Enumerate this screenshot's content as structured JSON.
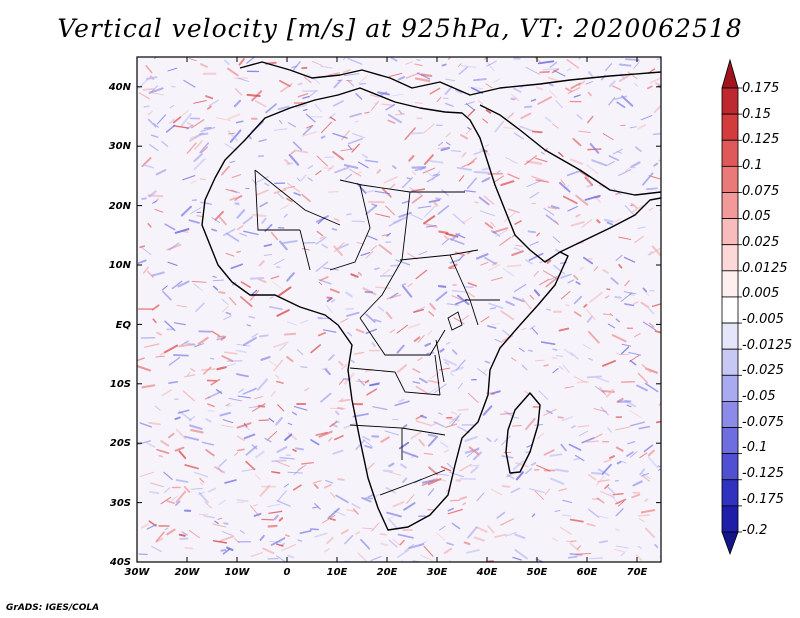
{
  "title": "Vertical velocity [m/s] at 925hPa, VT: 2020062518",
  "footer": "GrADS: IGES/COLA",
  "map": {
    "lon_range": [
      -30,
      75
    ],
    "lat_range": [
      -40,
      45
    ],
    "lon_ticks": [
      "30W",
      "20W",
      "10W",
      "0",
      "10E",
      "20E",
      "30E",
      "40E",
      "50E",
      "60E",
      "70E"
    ],
    "lat_ticks": [
      "40S",
      "30S",
      "20S",
      "10S",
      "EQ",
      "10N",
      "20N",
      "30N",
      "40N"
    ],
    "background": "#ffffff"
  },
  "colorbar": {
    "labels": [
      "0.175",
      "0.15",
      "0.125",
      "0.1",
      "0.075",
      "0.05",
      "0.025",
      "0.0125",
      "0.005",
      "-0.005",
      "-0.0125",
      "-0.025",
      "-0.05",
      "-0.075",
      "-0.1",
      "-0.125",
      "-0.175",
      "-0.2"
    ],
    "colors": [
      "#a0141e",
      "#be2830",
      "#d23c3c",
      "#e0595a",
      "#ea7a7a",
      "#f29a9a",
      "#f8bcbc",
      "#fcd8d8",
      "#fff0f0",
      "#ffffff",
      "#e6e6fa",
      "#c8c8f5",
      "#aaaaf0",
      "#8c8ce8",
      "#6e6ee0",
      "#5050d2",
      "#3232c0",
      "#1e1ea8",
      "#14148c"
    ]
  }
}
